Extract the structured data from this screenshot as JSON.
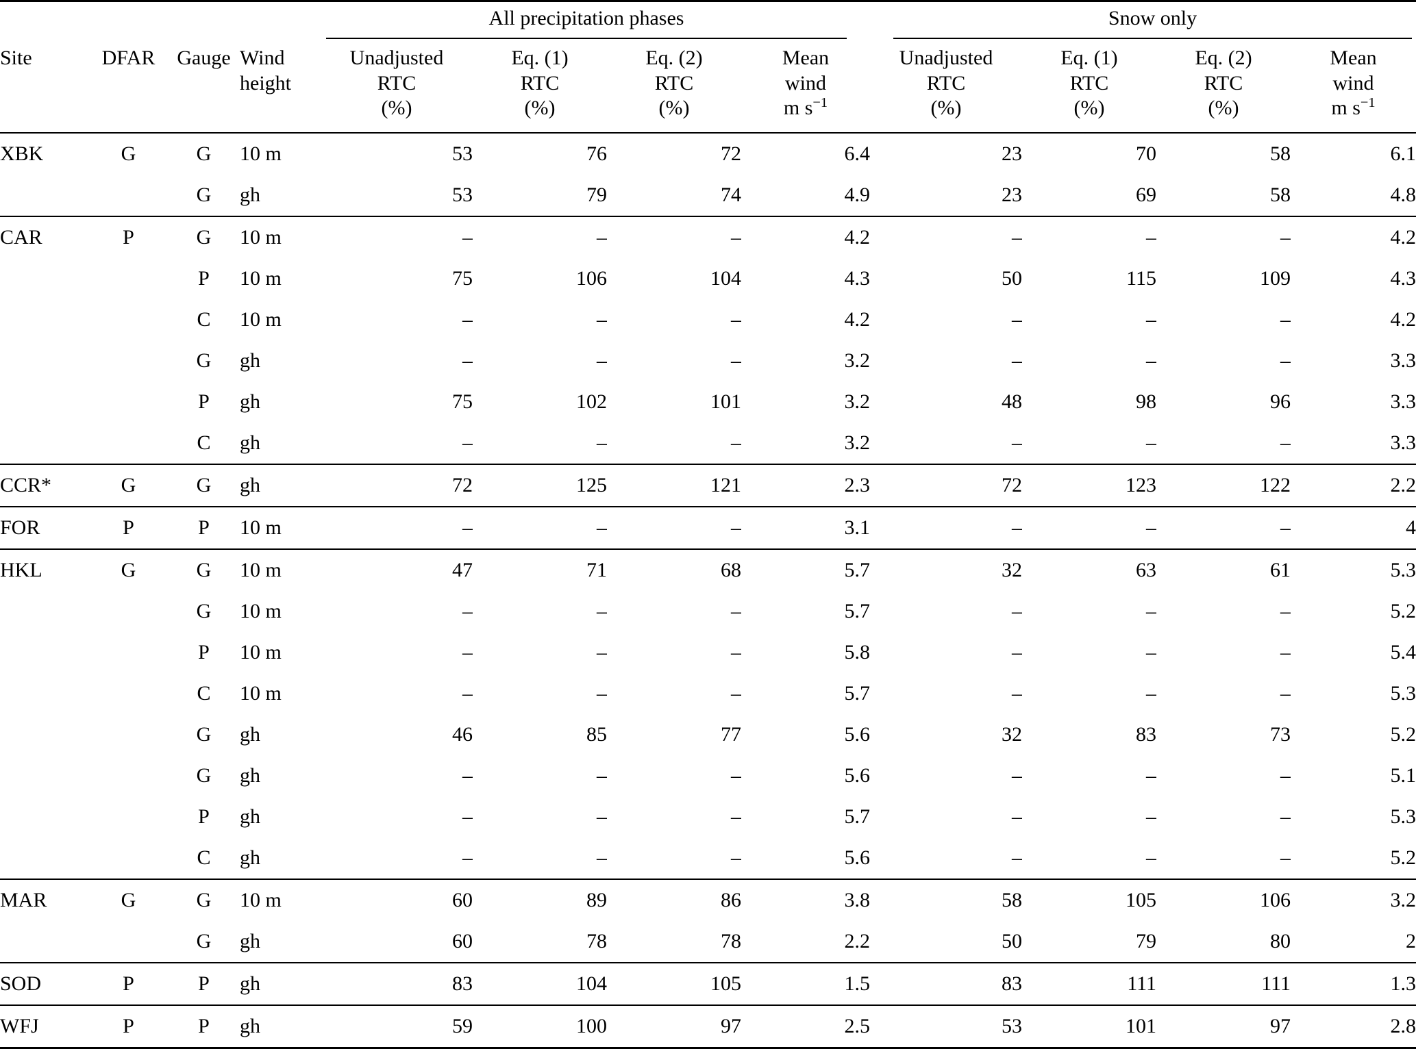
{
  "table": {
    "groups": [
      {
        "label": "All precipitation phases"
      },
      {
        "label": "Snow only"
      }
    ],
    "columns": [
      {
        "lines": [
          "Site"
        ]
      },
      {
        "lines": [
          "DFAR"
        ]
      },
      {
        "lines": [
          "Gauge"
        ]
      },
      {
        "lines": [
          "Wind",
          "height"
        ]
      },
      {
        "lines": [
          "Unadjusted",
          "RTC",
          "(%)"
        ]
      },
      {
        "lines": [
          "Eq. (1)",
          "RTC",
          "(%)"
        ]
      },
      {
        "lines": [
          "Eq. (2)",
          "RTC",
          "(%)"
        ]
      },
      {
        "lines": [
          "Mean",
          "wind"
        ],
        "unit_base": "m s",
        "unit_sup": "−1"
      },
      {
        "lines": [
          "Unadjusted",
          "RTC",
          "(%)"
        ]
      },
      {
        "lines": [
          "Eq. (1)",
          "RTC",
          "(%)"
        ]
      },
      {
        "lines": [
          "Eq. (2)",
          "RTC",
          "(%)"
        ]
      },
      {
        "lines": [
          "Mean",
          "wind"
        ],
        "unit_base": "m s",
        "unit_sup": "−1"
      }
    ],
    "rows": [
      {
        "cells": [
          "XBK",
          "G",
          "G",
          "10 m",
          "53",
          "76",
          "72",
          "6.4",
          "23",
          "70",
          "58",
          "6.1"
        ],
        "bold": [],
        "new_group": true
      },
      {
        "cells": [
          "",
          "",
          "G",
          "gh",
          "53",
          "79",
          "74",
          "4.9",
          "23",
          "69",
          "58",
          "4.8"
        ],
        "bold": [
          3,
          5,
          9,
          10
        ],
        "new_group": false
      },
      {
        "cells": [
          "CAR",
          "P",
          "G",
          "10 m",
          "–",
          "–",
          "–",
          "4.2",
          "–",
          "–",
          "–",
          "4.2"
        ],
        "bold": [],
        "new_group": true
      },
      {
        "cells": [
          "",
          "",
          "P",
          "10 m",
          "75",
          "106",
          "104",
          "4.3",
          "50",
          "115",
          "109",
          "4.3"
        ],
        "bold": [],
        "new_group": false
      },
      {
        "cells": [
          "",
          "",
          "C",
          "10 m",
          "–",
          "–",
          "–",
          "4.2",
          "–",
          "–",
          "–",
          "4.2"
        ],
        "bold": [],
        "new_group": false
      },
      {
        "cells": [
          "",
          "",
          "G",
          "gh",
          "–",
          "–",
          "–",
          "3.2",
          "–",
          "–",
          "–",
          "3.3"
        ],
        "bold": [],
        "new_group": false
      },
      {
        "cells": [
          "",
          "",
          "P",
          "gh",
          "75",
          "102",
          "101",
          "3.2",
          "48",
          "98",
          "96",
          "3.3"
        ],
        "bold": [
          3,
          5,
          6,
          9,
          10
        ],
        "new_group": false
      },
      {
        "cells": [
          "",
          "",
          "C",
          "gh",
          "–",
          "–",
          "–",
          "3.2",
          "–",
          "–",
          "–",
          "3.3"
        ],
        "bold": [],
        "new_group": false
      },
      {
        "cells": [
          "CCR*",
          "G",
          "G",
          "gh",
          "72",
          "125",
          "121",
          "2.3",
          "72",
          "123",
          "122",
          "2.2"
        ],
        "bold": [],
        "new_group": true
      },
      {
        "cells": [
          "FOR",
          "P",
          "P",
          "10 m",
          "–",
          "–",
          "–",
          "3.1",
          "–",
          "–",
          "–",
          "4"
        ],
        "bold": [],
        "new_group": true
      },
      {
        "cells": [
          "HKL",
          "G",
          "G",
          "10 m",
          "47",
          "71",
          "68",
          "5.7",
          "32",
          "63",
          "61",
          "5.3"
        ],
        "bold": [],
        "new_group": true
      },
      {
        "cells": [
          "",
          "",
          "G",
          "10 m",
          "–",
          "–",
          "–",
          "5.7",
          "–",
          "–",
          "–",
          "5.2"
        ],
        "bold": [],
        "new_group": false
      },
      {
        "cells": [
          "",
          "",
          "P",
          "10 m",
          "–",
          "–",
          "–",
          "5.8",
          "–",
          "–",
          "–",
          "5.4"
        ],
        "bold": [],
        "new_group": false
      },
      {
        "cells": [
          "",
          "",
          "C",
          "10 m",
          "–",
          "–",
          "–",
          "5.7",
          "–",
          "–",
          "–",
          "5.3"
        ],
        "bold": [],
        "new_group": false
      },
      {
        "cells": [
          "",
          "",
          "G",
          "gh",
          "46",
          "85",
          "77",
          "5.6",
          "32",
          "83",
          "73",
          "5.2"
        ],
        "bold": [
          3,
          5,
          6,
          9,
          10
        ],
        "new_group": false
      },
      {
        "cells": [
          "",
          "",
          "G",
          "gh",
          "–",
          "–",
          "–",
          "5.6",
          "–",
          "–",
          "–",
          "5.1"
        ],
        "bold": [],
        "new_group": false
      },
      {
        "cells": [
          "",
          "",
          "P",
          "gh",
          "–",
          "–",
          "–",
          "5.7",
          "–",
          "–",
          "–",
          "5.3"
        ],
        "bold": [],
        "new_group": false
      },
      {
        "cells": [
          "",
          "",
          "C",
          "gh",
          "–",
          "–",
          "–",
          "5.6",
          "–",
          "–",
          "–",
          "5.2"
        ],
        "bold": [],
        "new_group": false
      },
      {
        "cells": [
          "MAR",
          "G",
          "G",
          "10 m",
          "60",
          "89",
          "86",
          "3.8",
          "58",
          "105",
          "106",
          "3.2"
        ],
        "bold": [],
        "new_group": true
      },
      {
        "cells": [
          "",
          "",
          "G",
          "gh",
          "60",
          "78",
          "78",
          "2.2",
          "50",
          "79",
          "80",
          "2"
        ],
        "bold": [
          3,
          5,
          6,
          9,
          10
        ],
        "new_group": false
      },
      {
        "cells": [
          "SOD",
          "P",
          "P",
          "gh",
          "83",
          "104",
          "105",
          "1.5",
          "83",
          "111",
          "111",
          "1.3"
        ],
        "bold": [],
        "new_group": true
      },
      {
        "cells": [
          "WFJ",
          "P",
          "P",
          "gh",
          "59",
          "100",
          "97",
          "2.5",
          "53",
          "101",
          "97",
          "2.8"
        ],
        "bold": [],
        "new_group": true
      }
    ]
  }
}
